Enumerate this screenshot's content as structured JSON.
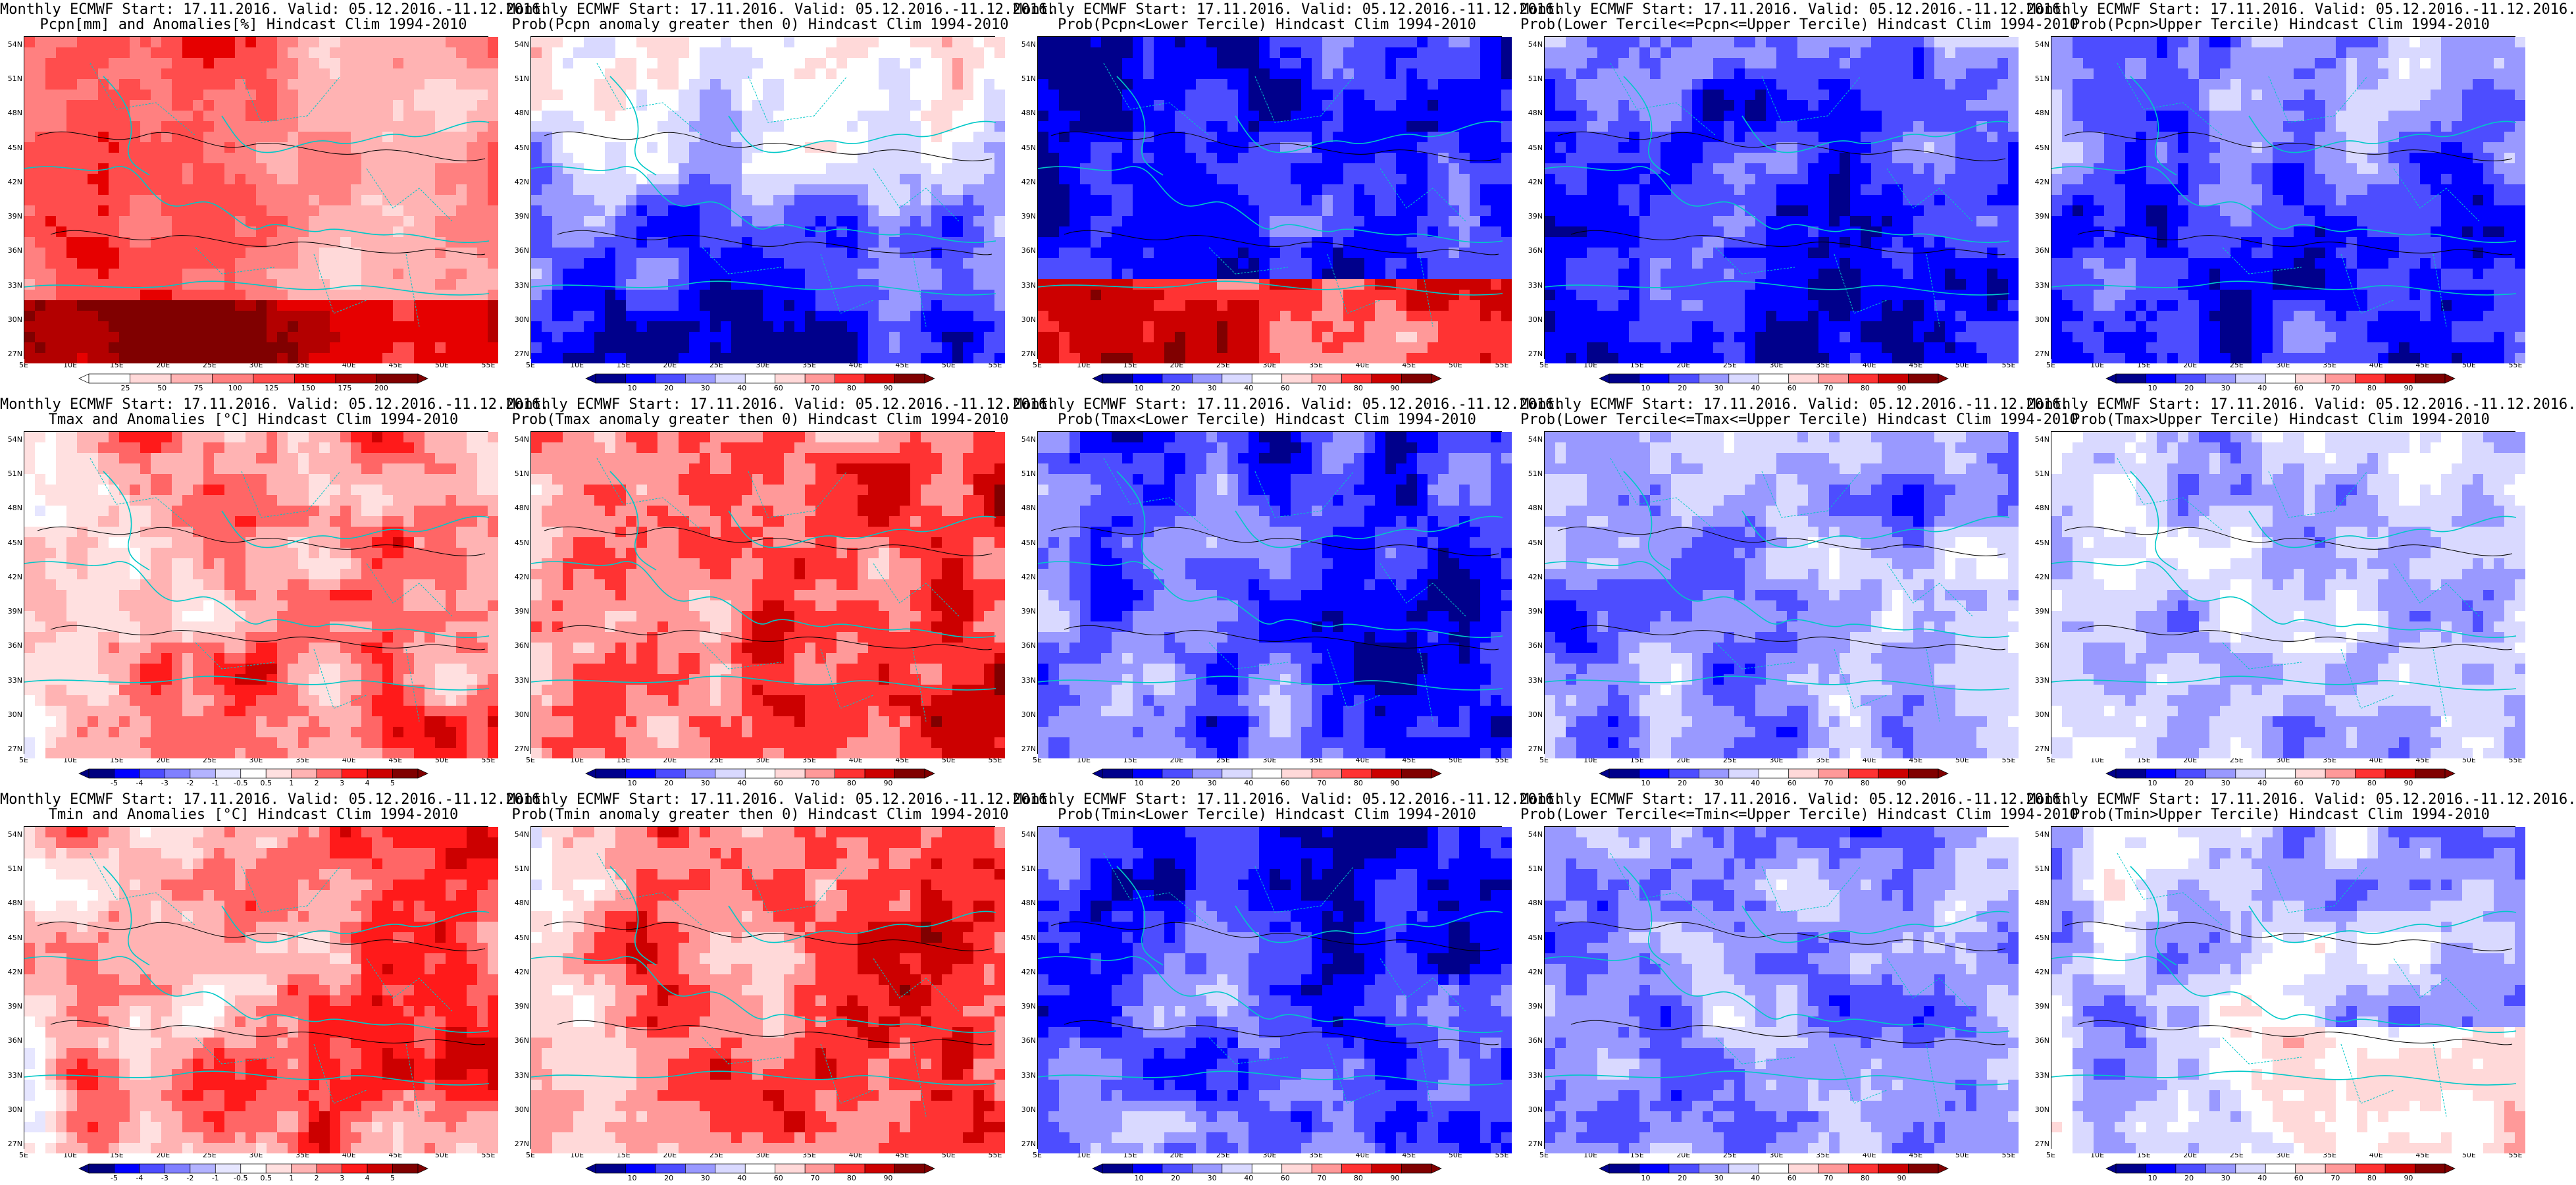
{
  "latitude_labels": [
    "54N",
    "51N",
    "48N",
    "45N",
    "42N",
    "39N",
    "36N",
    "33N",
    "30N",
    "27N"
  ],
  "longitude_labels": [
    "5E",
    "10E",
    "15E",
    "20E",
    "25E",
    "30E",
    "35E",
    "40E",
    "45E",
    "50E",
    "55E"
  ],
  "rows": [
    {
      "variable": "Pcpn",
      "panels": [
        {
          "title_line1": "Monthly ECMWF Start: 17.11.2016. Valid: 05.12.2016.-11.12.2016.",
          "title_line2": "Pcpn[mm] and Anomalies[%] Hindcast Clim 1994-2010",
          "scale": "anomaly-precip",
          "colorbar_labels": [
            "25",
            "50",
            "75",
            "100",
            "125",
            "150",
            "175",
            "200"
          ]
        },
        {
          "title_line1": "Monthly ECMWF Start: 17.11.2016. Valid: 05.12.2016.-11.12.2016.",
          "title_line2": "Prob(Pcpn anomaly greater then 0) Hindcast Clim 1994-2010",
          "scale": "probability",
          "colorbar_labels": [
            "10",
            "20",
            "30",
            "40",
            "60",
            "70",
            "80",
            "90"
          ]
        },
        {
          "title_line1": "Monthly ECMWF Start: 17.11.2016. Valid: 05.12.2016.-11.12.2016.",
          "title_line2": "Prob(Pcpn<Lower Tercile) Hindcast Clim 1994-2010",
          "scale": "probability",
          "colorbar_labels": [
            "10",
            "20",
            "30",
            "40",
            "60",
            "70",
            "80",
            "90"
          ]
        },
        {
          "title_line1": "Monthly ECMWF Start: 17.11.2016. Valid: 05.12.2016.-11.12.2016.",
          "title_line2": "Prob(Lower Tercile<=Pcpn<=Upper Tercile) Hindcast Clim 1994-2010",
          "scale": "probability",
          "colorbar_labels": [
            "10",
            "20",
            "30",
            "40",
            "60",
            "70",
            "80",
            "90"
          ]
        },
        {
          "title_line1": "Monthly ECMWF Start: 17.11.2016. Valid: 05.12.2016.-11.12.2016.",
          "title_line2": "Prob(Pcpn>Upper Tercile) Hindcast Clim 1994-2010",
          "scale": "probability",
          "colorbar_labels": [
            "10",
            "20",
            "30",
            "40",
            "60",
            "70",
            "80",
            "90"
          ]
        }
      ]
    },
    {
      "variable": "Tmax",
      "panels": [
        {
          "title_line1": "Monthly ECMWF Start: 17.11.2016. Valid: 05.12.2016.-11.12.2016.",
          "title_line2": "Tmax and Anomalies [°C] Hindcast Clim 1994-2010",
          "scale": "anomaly-temp",
          "colorbar_labels": [
            "-5",
            "-4",
            "-3",
            "-2",
            "-1",
            "-0.5",
            "0.5",
            "1",
            "2",
            "3",
            "4",
            "5"
          ]
        },
        {
          "title_line1": "Monthly ECMWF Start: 17.11.2016. Valid: 05.12.2016.-11.12.2016.",
          "title_line2": "Prob(Tmax anomaly greater then 0) Hindcast Clim 1994-2010",
          "scale": "probability",
          "colorbar_labels": [
            "10",
            "20",
            "30",
            "40",
            "60",
            "70",
            "80",
            "90"
          ]
        },
        {
          "title_line1": "Monthly ECMWF Start: 17.11.2016. Valid: 05.12.2016.-11.12.2016.",
          "title_line2": "Prob(Tmax<Lower Tercile) Hindcast Clim 1994-2010",
          "scale": "probability",
          "colorbar_labels": [
            "10",
            "20",
            "30",
            "40",
            "60",
            "70",
            "80",
            "90"
          ]
        },
        {
          "title_line1": "Monthly ECMWF Start: 17.11.2016. Valid: 05.12.2016.-11.12.2016.",
          "title_line2": "Prob(Lower Tercile<=Tmax<=Upper Tercile) Hindcast Clim 1994-2010",
          "scale": "probability",
          "colorbar_labels": [
            "10",
            "20",
            "30",
            "40",
            "60",
            "70",
            "80",
            "90"
          ]
        },
        {
          "title_line1": "Monthly ECMWF Start: 17.11.2016. Valid: 05.12.2016.-11.12.2016.",
          "title_line2": "Prob(Tmax>Upper Tercile) Hindcast Clim 1994-2010",
          "scale": "probability",
          "colorbar_labels": [
            "10",
            "20",
            "30",
            "40",
            "60",
            "70",
            "80",
            "90"
          ]
        }
      ]
    },
    {
      "variable": "Tmin",
      "panels": [
        {
          "title_line1": "Monthly ECMWF Start: 17.11.2016. Valid: 05.12.2016.-11.12.2016.",
          "title_line2": "Tmin and Anomalies [°C] Hindcast Clim 1994-2010",
          "scale": "anomaly-temp",
          "colorbar_labels": [
            "-5",
            "-4",
            "-3",
            "-2",
            "-1",
            "-0.5",
            "0.5",
            "1",
            "2",
            "3",
            "4",
            "5"
          ]
        },
        {
          "title_line1": "Monthly ECMWF Start: 17.11.2016. Valid: 05.12.2016.-11.12.2016.",
          "title_line2": "Prob(Tmin anomaly greater then 0) Hindcast Clim 1994-2010",
          "scale": "probability",
          "colorbar_labels": [
            "10",
            "20",
            "30",
            "40",
            "60",
            "70",
            "80",
            "90"
          ]
        },
        {
          "title_line1": "Monthly ECMWF Start: 17.11.2016. Valid: 05.12.2016.-11.12.2016.",
          "title_line2": "Prob(Tmin<Lower Tercile) Hindcast Clim 1994-2010",
          "scale": "probability",
          "colorbar_labels": [
            "10",
            "20",
            "30",
            "40",
            "60",
            "70",
            "80",
            "90"
          ]
        },
        {
          "title_line1": "Monthly ECMWF Start: 17.11.2016. Valid: 05.12.2016.-11.12.2016.",
          "title_line2": "Prob(Lower Tercile<=Tmin<=Upper Tercile) Hindcast Clim 1994-2010",
          "scale": "probability",
          "colorbar_labels": [
            "10",
            "20",
            "30",
            "40",
            "60",
            "70",
            "80",
            "90"
          ]
        },
        {
          "title_line1": "Monthly ECMWF Start: 17.11.2016. Valid: 05.12.2016.-11.12.2016.",
          "title_line2": "Prob(Tmin>Upper Tercile) Hindcast Clim 1994-2010",
          "scale": "probability",
          "colorbar_labels": [
            "10",
            "20",
            "30",
            "40",
            "60",
            "70",
            "80",
            "90"
          ]
        }
      ]
    }
  ],
  "palettes": {
    "anomaly-precip": [
      "#ffffff",
      "#ffd9d9",
      "#ffb3b3",
      "#ff8080",
      "#ff4d4d",
      "#e60000",
      "#b30000",
      "#800000"
    ],
    "anomaly-temp": [
      "#00007f",
      "#0000ff",
      "#4d4dff",
      "#8080ff",
      "#b3b3ff",
      "#e6e6ff",
      "#ffffff",
      "#ffe0e0",
      "#ffb3b3",
      "#ff6666",
      "#ff1a1a",
      "#cc0000",
      "#800000"
    ],
    "probability": [
      "#00008b",
      "#0000ff",
      "#4d4dff",
      "#9999ff",
      "#d9d9ff",
      "#ffffff",
      "#ffd9d9",
      "#ff9999",
      "#ff3333",
      "#cc0000",
      "#800000"
    ]
  },
  "colors": {
    "coastline": "#00c8c8",
    "contour": "#000000",
    "frame": "#000000"
  }
}
